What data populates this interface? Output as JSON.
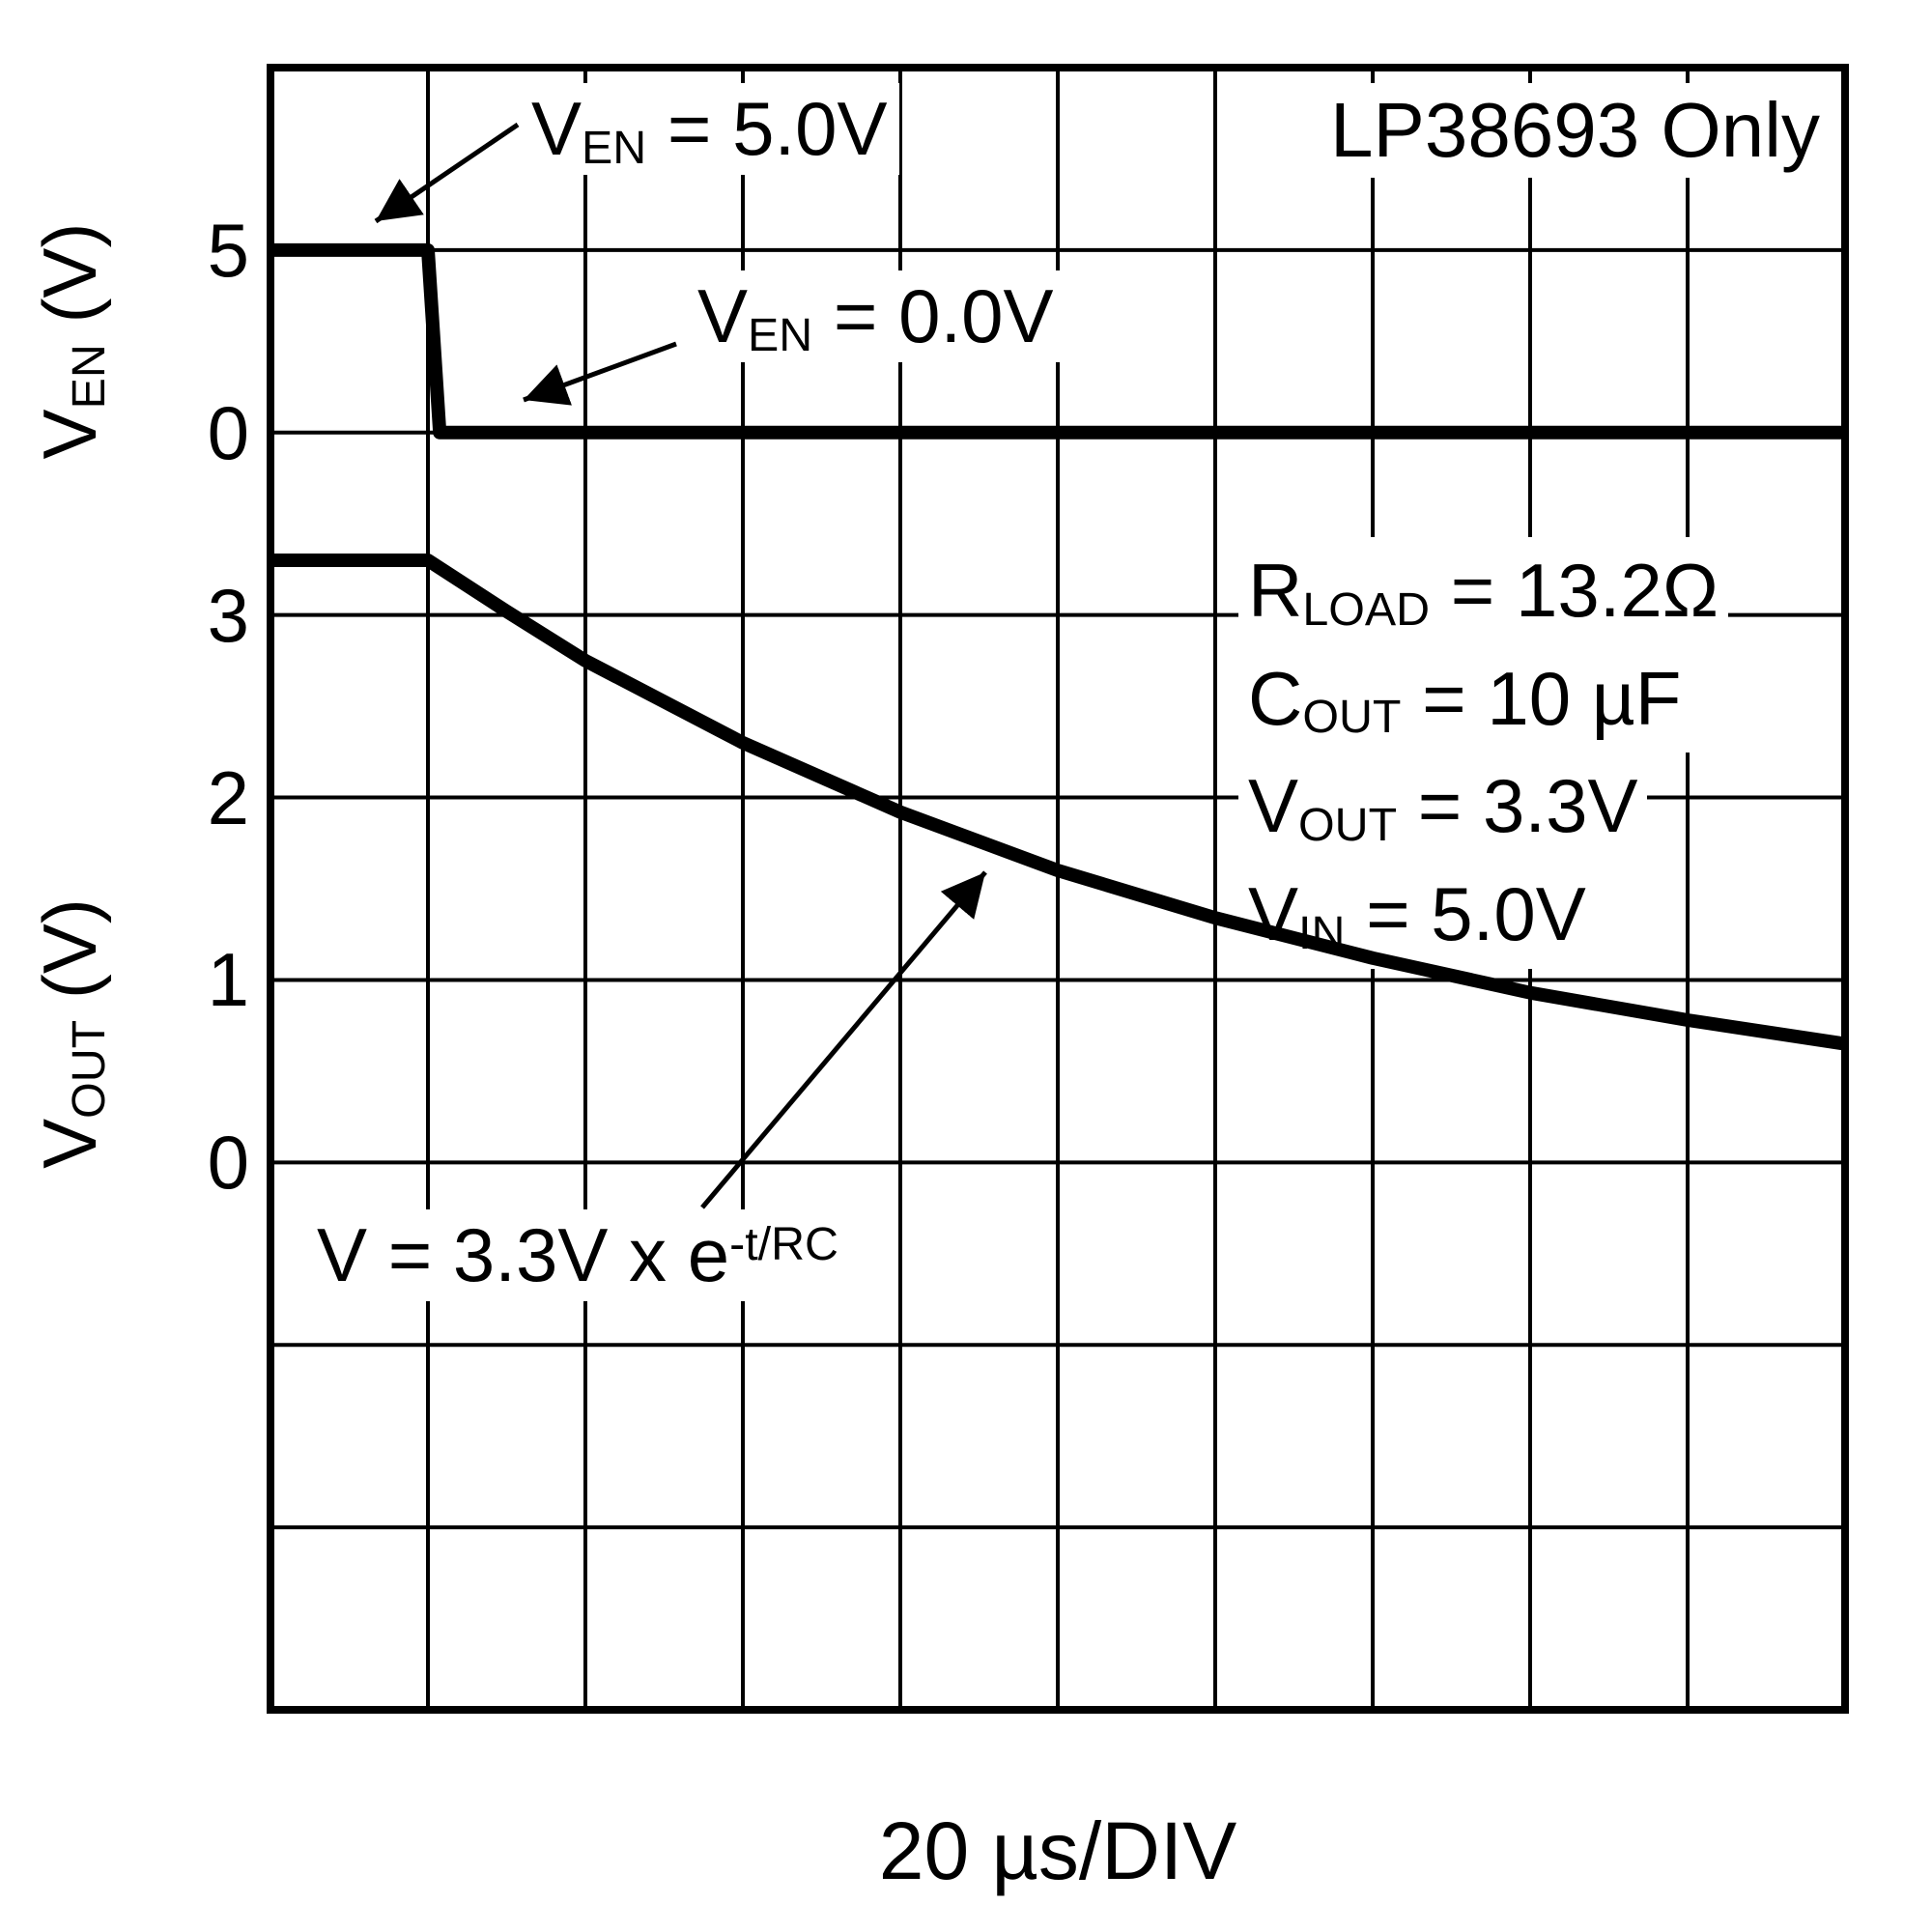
{
  "chart_data": {
    "type": "line",
    "title": "LP38693 Only",
    "xlabel": "20 µs/DIV",
    "x_us_per_div": 20,
    "divisions_x": 10,
    "divisions_y": 9,
    "grid": true,
    "axes": [
      {
        "name": "VEN",
        "label_pre": "V",
        "label_sub": "EN",
        "label_post": " (V)",
        "ticks": [
          {
            "value": "5",
            "row": 1
          },
          {
            "value": "0",
            "row": 2
          }
        ]
      },
      {
        "name": "VOUT",
        "label_pre": "V",
        "label_sub": "OUT",
        "label_post": " (V)",
        "ticks": [
          {
            "value": "3",
            "row": 3
          },
          {
            "value": "2",
            "row": 4
          },
          {
            "value": "1",
            "row": 5
          },
          {
            "value": "0",
            "row": 6
          }
        ]
      }
    ],
    "series": [
      {
        "name": "VEN",
        "zero_div": 2,
        "volts_per_div": 5,
        "points_t_us_v": [
          [
            0,
            5
          ],
          [
            20,
            5
          ],
          [
            21.5,
            0
          ],
          [
            200,
            0
          ]
        ]
      },
      {
        "name": "VOUT",
        "zero_div": 6,
        "volts_per_div": 1,
        "points_t_us_v": [
          [
            0,
            3.3
          ],
          [
            20,
            3.3
          ],
          [
            30,
            3.02
          ],
          [
            40,
            2.75
          ],
          [
            60,
            2.3
          ],
          [
            80,
            1.92
          ],
          [
            100,
            1.6
          ],
          [
            120,
            1.34
          ],
          [
            140,
            1.12
          ],
          [
            160,
            0.93
          ],
          [
            180,
            0.78
          ],
          [
            200,
            0.65
          ]
        ]
      }
    ],
    "annotations": {
      "ven_high": {
        "pre": "V",
        "sub": "EN",
        "post": " = 5.0V"
      },
      "ven_low": {
        "pre": "V",
        "sub": "EN",
        "post": " = 0.0V"
      },
      "conditions": [
        {
          "pre": "R",
          "sub": "LOAD",
          "post": " = 13.2Ω"
        },
        {
          "pre": "C",
          "sub": "OUT",
          "post": " = 10 µF"
        },
        {
          "pre": "V",
          "sub": "OUT",
          "post": " = 3.3V"
        },
        {
          "pre": "V",
          "sub": "IN",
          "post": " = 5.0V"
        }
      ],
      "formula": {
        "pre": "V = 3.3V x e",
        "sup": "-t/RC"
      }
    }
  }
}
